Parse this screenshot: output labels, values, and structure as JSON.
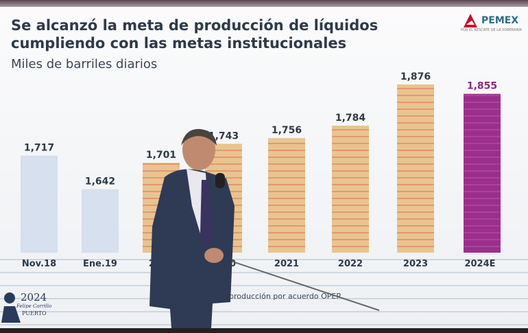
{
  "slide": {
    "title_line1": "Se alcanzó la meta de producción de líquidos",
    "title_line2": "cumpliendo con las metas institucionales",
    "subtitle": "Miles de barriles diarios",
    "logo": "PEMEX",
    "logo_tagline": "POR EL RESCATE DE LA SOBERANÍA",
    "footnote": "producción por acuerdo OPEP",
    "stamp": {
      "year": "2024",
      "name": "Felipe Carrillo",
      "place": "PUERTO"
    }
  },
  "colors": {
    "baseline": "#d6e0ee",
    "striped": "#e8c490",
    "stripe": "#e07a5a",
    "estimate": "#9b2f8c"
  },
  "chart_data": {
    "type": "bar",
    "title": "Se alcanzó la meta de producción de líquidos cumpliendo con las metas institucionales",
    "subtitle": "Miles de barriles diarios",
    "categories": [
      "Nov.18",
      "Ene.19",
      "2019",
      "2020",
      "2021",
      "2022",
      "2023",
      "2024E"
    ],
    "values": [
      1717,
      1642,
      1701,
      1743,
      1756,
      1784,
      1876,
      1855
    ],
    "value_labels": [
      "1,717",
      "1,642",
      "1,701",
      "1,743",
      "1,756",
      "1,784",
      "1,876",
      "1,855"
    ],
    "bar_styles": [
      "baseline",
      "baseline",
      "striped",
      "striped",
      "striped",
      "striped",
      "striped",
      "estimate"
    ],
    "grid": false
  }
}
